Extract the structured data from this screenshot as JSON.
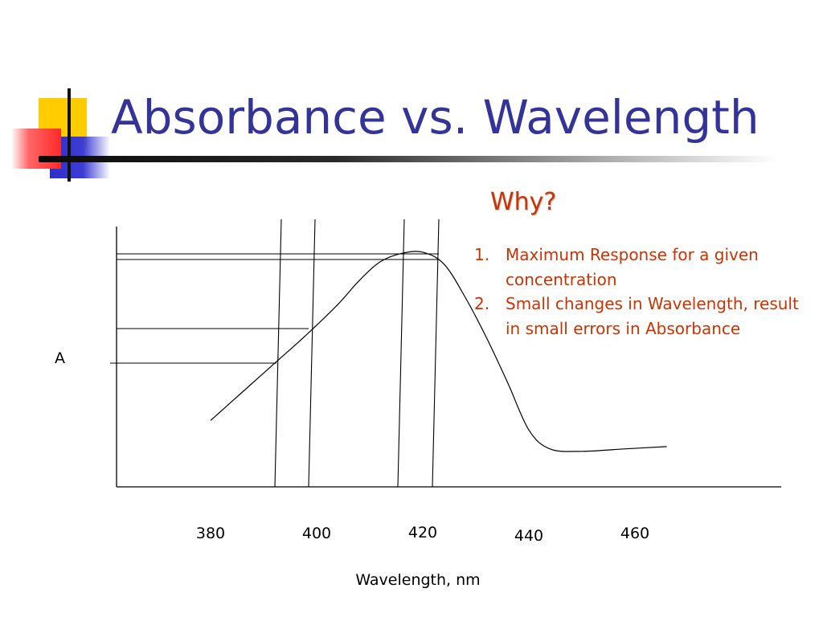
{
  "slide": {
    "title": "Absorbance vs. Wavelength",
    "why": "Why?",
    "reasons": [
      {
        "number": "1.",
        "text": "Maximum Response for a given concentration"
      },
      {
        "number": "2.",
        "text": "Small changes in Wavelength, result in small errors in Absorbance"
      }
    ],
    "colors": {
      "title": "#333399",
      "accent_text": "#cc3300",
      "deco_yellow": "#ffcc00",
      "deco_red": "#ff3333",
      "deco_blue": "#3333cc"
    }
  },
  "chart_data": {
    "type": "line",
    "title": "",
    "xlabel": "Wavelength, nm",
    "ylabel": "A",
    "x_ticks": [
      380,
      400,
      420,
      440,
      460
    ],
    "grid": false,
    "series": [
      {
        "x": [
          380,
          386,
          392,
          398,
          404,
          408,
          412,
          416,
          420,
          424,
          428,
          432,
          436,
          440,
          444,
          450,
          458,
          466
        ],
        "y": [
          0.28,
          0.4,
          0.52,
          0.64,
          0.77,
          0.87,
          0.95,
          0.985,
          0.99,
          0.94,
          0.8,
          0.63,
          0.44,
          0.24,
          0.16,
          0.15,
          0.16,
          0.17
        ]
      }
    ]
  }
}
